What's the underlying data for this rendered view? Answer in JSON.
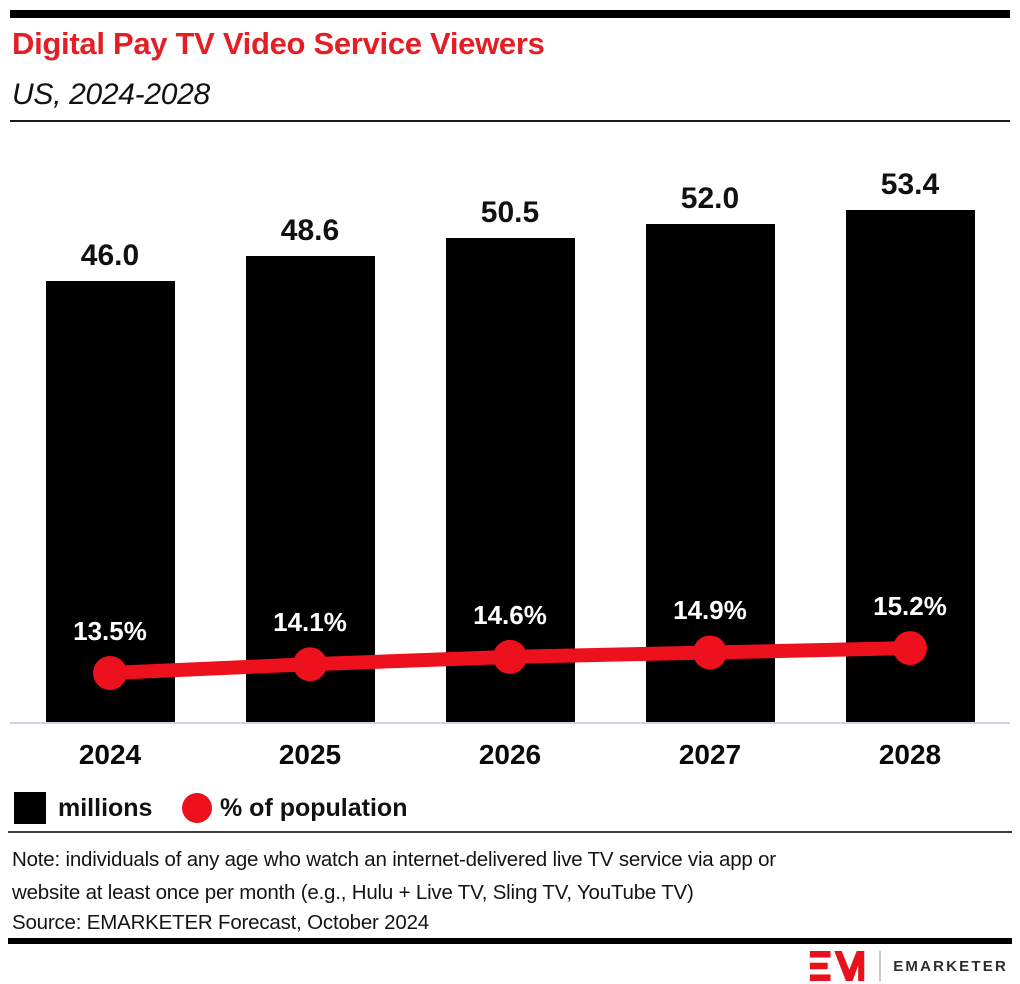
{
  "header": {
    "title": "Digital Pay TV Video Service Viewers",
    "subtitle": "US, 2024-2028"
  },
  "chart_data": {
    "type": "bar",
    "subtype": "bar-with-line-overlay",
    "categories": [
      "2024",
      "2025",
      "2026",
      "2027",
      "2028"
    ],
    "series": [
      {
        "name": "millions",
        "type": "bar",
        "values": [
          46.0,
          48.6,
          50.5,
          52.0,
          53.4
        ],
        "labels": [
          "46.0",
          "48.6",
          "50.5",
          "52.0",
          "53.4"
        ],
        "color": "#000000"
      },
      {
        "name": "% of population",
        "type": "line",
        "values": [
          13.5,
          14.1,
          14.6,
          14.9,
          15.2
        ],
        "labels": [
          "13.5%",
          "14.1%",
          "14.6%",
          "14.9%",
          "15.2%"
        ],
        "color": "#ec111c"
      }
    ],
    "title": "Digital Pay TV Video Service Viewers",
    "subtitle": "US, 2024-2028",
    "xlabel": "",
    "ylabel": "",
    "bar_axis_range": [
      0,
      75
    ],
    "grid": false,
    "legend_position": "bottom-left",
    "data_labels_shown": true
  },
  "legend": [
    {
      "label": "millions",
      "swatch": "square",
      "color": "#000000"
    },
    {
      "label": "% of population",
      "swatch": "circle",
      "color": "#ec111c"
    }
  ],
  "footnote": {
    "note_line1": "Note: individuals of any age who watch an internet-delivered live TV service via app or",
    "note_line2": "website at least once per month (e.g., Hulu + Live TV, Sling TV, YouTube TV)",
    "source": "Source: EMARKETER Forecast, October 2024"
  },
  "branding": {
    "logo_text": "EMARKETER",
    "logo_monogram": "EM"
  },
  "colors": {
    "title_red": "#e41e25",
    "line_red": "#ec111c",
    "bar_black": "#000000",
    "axis_line": "#ccd3e6",
    "rule_dark": "#3d3d3d"
  }
}
